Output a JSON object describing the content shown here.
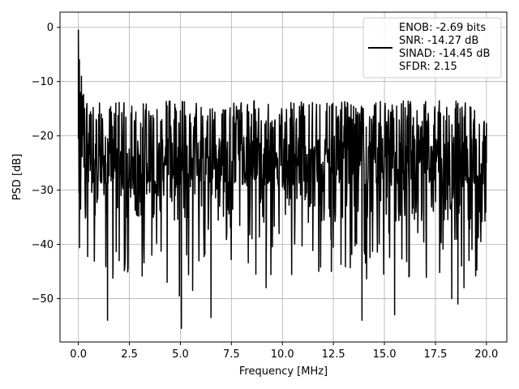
{
  "chart_data": {
    "type": "line",
    "title": "",
    "xlabel": "Frequency [MHz]",
    "ylabel": "PSD [dB]",
    "xlim": [
      -0.9,
      21.0
    ],
    "ylim": [
      -58,
      2.8
    ],
    "xticks": [
      0.0,
      2.5,
      5.0,
      7.5,
      10.0,
      12.5,
      15.0,
      17.5,
      20.0
    ],
    "xtick_labels": [
      "0.0",
      "2.5",
      "5.0",
      "7.5",
      "10.0",
      "12.5",
      "15.0",
      "17.5",
      "20.0"
    ],
    "yticks": [
      0,
      -10,
      -20,
      -30,
      -40,
      -50
    ],
    "ytick_labels": [
      "0",
      "−10",
      "−20",
      "−30",
      "−40",
      "−50"
    ],
    "grid": true,
    "legend_position": "top-right",
    "legend_entries": [
      "ENOB: -2.69 bits",
      "SNR: -14.27 dB",
      "SINAD: -14.45 dB",
      "SFDR: 2.15"
    ],
    "series": [
      {
        "color": "#000000",
        "noise_floor_mean_db": -24.5,
        "noise_floor_range_db": [
          -32,
          -16
        ],
        "x": [
          0.0,
          0.05,
          0.1,
          0.15,
          0.2,
          0.3,
          0.45,
          0.65,
          1.43,
          1.7,
          2.0,
          3.6,
          4.35,
          4.95,
          5.05,
          5.6,
          6.5,
          8.7,
          9.2,
          12.4,
          13.9,
          15.5,
          16.2,
          18.3,
          18.6,
          18.9,
          20.0
        ],
        "y": [
          -0.5,
          -6.0,
          -12.0,
          -9.0,
          -20.0,
          -15.0,
          -29.0,
          -25.0,
          -54.0,
          -44.0,
          -43.0,
          -42.0,
          -47.0,
          -49.5,
          -55.5,
          -48.5,
          -53.5,
          -45.5,
          -48.0,
          -45.0,
          -54.0,
          -53.0,
          -46.0,
          -50.0,
          -51.0,
          -48.0,
          -25.0
        ]
      }
    ]
  }
}
